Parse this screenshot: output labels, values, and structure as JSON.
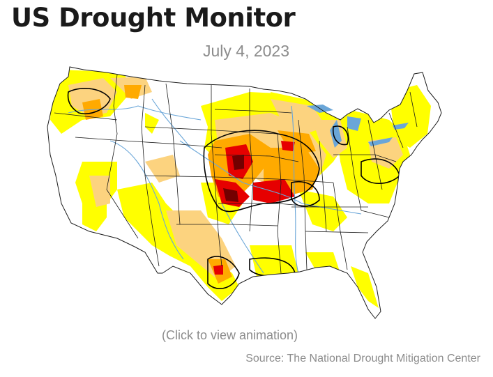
{
  "header": {
    "title": "US Drought Monitor",
    "date": "July 4, 2023"
  },
  "map": {
    "legend_colors": {
      "D0_abnormally_dry": "#ffff00",
      "D1_moderate": "#fcd37f",
      "D2_severe": "#ffaa00",
      "D3_extreme": "#e60000",
      "D4_exceptional": "#730000"
    },
    "water_color": "#6aa6d8",
    "state_border_color": "#1a1a1a"
  },
  "footer": {
    "click_text": "(Click to view animation)",
    "source_text": "Source: The National Drought Mitigation Center"
  }
}
